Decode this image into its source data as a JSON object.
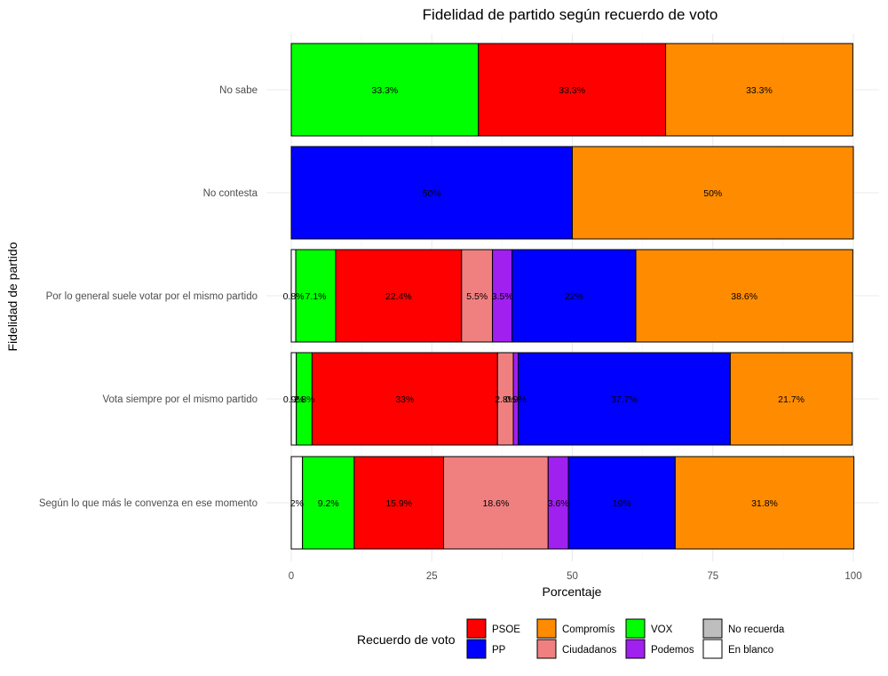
{
  "chart_data": {
    "type": "bar",
    "orientation": "horizontal",
    "stacked": true,
    "title": "Fidelidad de partido según recuerdo de voto",
    "xlabel": "Porcentaje",
    "ylabel": "Fidelidad de partido",
    "xlim": [
      0,
      100
    ],
    "xticks": [
      0,
      25,
      50,
      75,
      100
    ],
    "grid": true,
    "legend_position": "bottom",
    "legend_title": "Recuerdo de voto",
    "categories": [
      "No sabe",
      "No contesta",
      "Por lo general suele votar por el mismo partido",
      "Vota siempre por el mismo partido",
      "Según lo que más le convenza en ese momento"
    ],
    "stack_order": [
      "En blanco",
      "VOX",
      "PSOE",
      "Ciudadanos",
      "Podemos",
      "PP",
      "Compromís"
    ],
    "legend_items": [
      "PSOE",
      "PP",
      "Compromís",
      "Ciudadanos",
      "VOX",
      "Podemos",
      "No recuerda",
      "En blanco"
    ],
    "colors": {
      "PSOE": "#ff0000",
      "PP": "#0000ff",
      "Compromís": "#ff8c00",
      "Ciudadanos": "#f08080",
      "VOX": "#00ff00",
      "Podemos": "#a020f0",
      "No recuerda": "#bebebe",
      "En blanco": "#ffffff"
    },
    "series": [
      {
        "name": "En blanco",
        "values": [
          0,
          0,
          0.8,
          0.9,
          2
        ],
        "labels": [
          "",
          "",
          "0.8%",
          "0.9%",
          "2%"
        ]
      },
      {
        "name": "VOX",
        "values": [
          33.3,
          0,
          7.1,
          2.8,
          9.2
        ],
        "labels": [
          "33.3%",
          "",
          "7.1%",
          "2.8%",
          "9.2%"
        ]
      },
      {
        "name": "PSOE",
        "values": [
          33.3,
          0,
          22.4,
          33,
          15.9
        ],
        "labels": [
          "33.3%",
          "",
          "22.4%",
          "33%",
          "15.9%"
        ]
      },
      {
        "name": "Ciudadanos",
        "values": [
          0,
          0,
          5.5,
          2.8,
          18.6
        ],
        "labels": [
          "",
          "",
          "5.5%",
          "2.8%",
          "18.6%"
        ]
      },
      {
        "name": "Podemos",
        "values": [
          0,
          0,
          3.5,
          0.9,
          3.6
        ],
        "labels": [
          "",
          "",
          "3.5%",
          "0.9%",
          "3.6%"
        ]
      },
      {
        "name": "PP",
        "values": [
          0,
          50,
          22,
          37.7,
          19
        ],
        "labels": [
          "",
          "50%",
          "22%",
          "37.7%",
          "19%"
        ]
      },
      {
        "name": "Compromís",
        "values": [
          33.3,
          50,
          38.6,
          21.7,
          31.8
        ],
        "labels": [
          "33.3%",
          "50%",
          "38.6%",
          "21.7%",
          "31.8%"
        ]
      }
    ]
  }
}
